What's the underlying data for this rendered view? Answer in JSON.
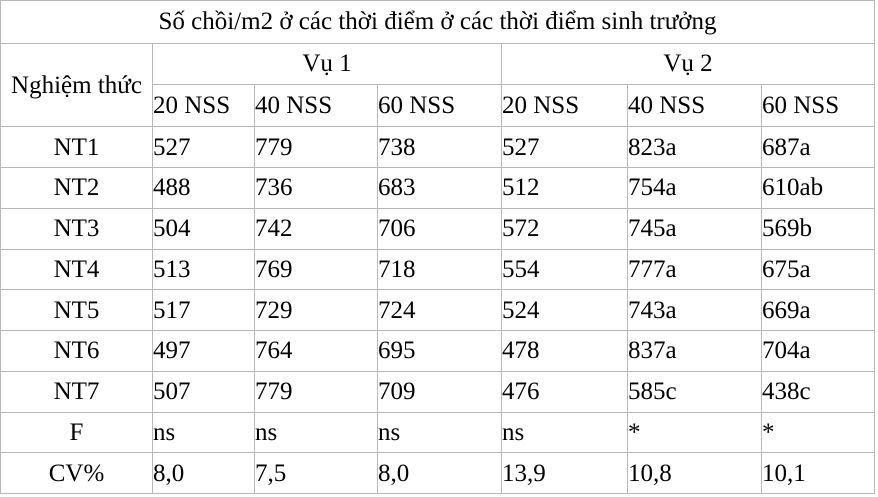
{
  "table": {
    "title": "Số chồi/m2 ở các thời điểm ở các thời điểm sinh trưởng",
    "row_header": "Nghiệm thức",
    "groups": [
      "Vụ 1",
      "Vụ 2"
    ],
    "sub_headers": [
      "20 NSS",
      "40 NSS",
      "60 NSS",
      "20 NSS",
      "40 NSS",
      "60 NSS"
    ],
    "rows": [
      {
        "label": "NT1",
        "cells": [
          "527",
          "779",
          "738",
          "527",
          "823a",
          "687a"
        ]
      },
      {
        "label": "NT2",
        "cells": [
          "488",
          "736",
          "683",
          "512",
          "754a",
          "610ab"
        ]
      },
      {
        "label": "NT3",
        "cells": [
          "504",
          "742",
          "706",
          "572",
          "745a",
          "569b"
        ]
      },
      {
        "label": "NT4",
        "cells": [
          "513",
          "769",
          "718",
          "554",
          "777a",
          "675a"
        ]
      },
      {
        "label": "NT5",
        "cells": [
          "517",
          "729",
          "724",
          "524",
          "743a",
          "669a"
        ]
      },
      {
        "label": "NT6",
        "cells": [
          "497",
          "764",
          "695",
          "478",
          "837a",
          "704a"
        ]
      },
      {
        "label": "NT7",
        "cells": [
          "507",
          "779",
          "709",
          "476",
          "585c",
          "438c"
        ]
      },
      {
        "label": "F",
        "cells": [
          "ns",
          "ns",
          "ns",
          "ns",
          "*",
          "*"
        ]
      },
      {
        "label": "CV%",
        "cells": [
          "8,0",
          "7,5",
          "8,0",
          "13,9",
          "10,8",
          "10,1"
        ]
      }
    ]
  }
}
